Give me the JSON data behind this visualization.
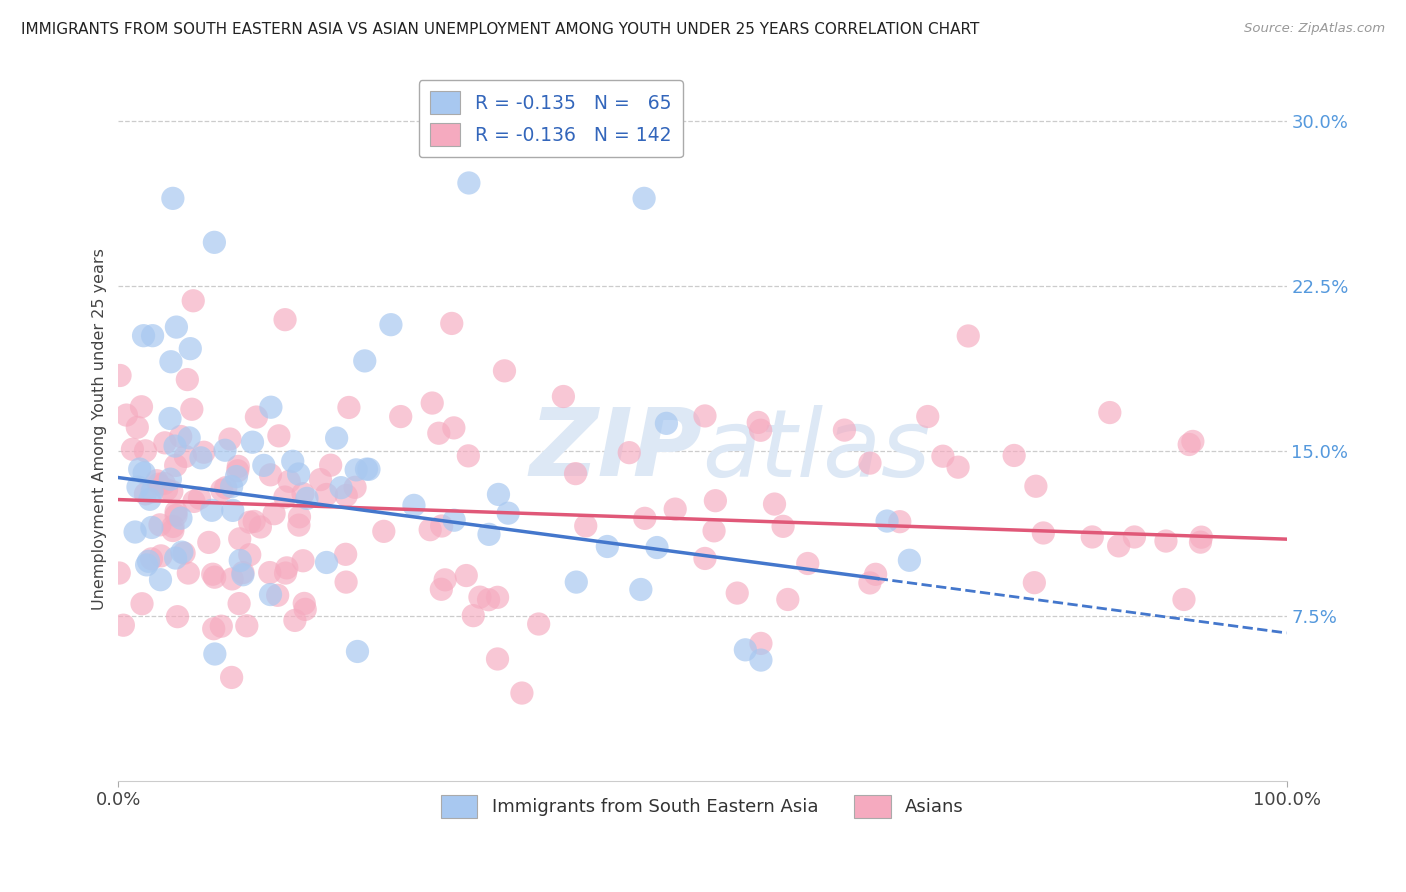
{
  "title": "IMMIGRANTS FROM SOUTH EASTERN ASIA VS ASIAN UNEMPLOYMENT AMONG YOUTH UNDER 25 YEARS CORRELATION CHART",
  "source": "Source: ZipAtlas.com",
  "ylabel": "Unemployment Among Youth under 25 years",
  "series1_label": "Immigrants from South Eastern Asia",
  "series1_R": -0.135,
  "series1_N": 65,
  "series1_color": "#a8c8f0",
  "series1_edge_color": "#7aabde",
  "series1_line_color": "#4477cc",
  "series2_label": "Asians",
  "series2_R": -0.136,
  "series2_N": 142,
  "series2_color": "#f5aabf",
  "series2_edge_color": "#e08898",
  "series2_line_color": "#e05878",
  "background_color": "#ffffff",
  "grid_color": "#cccccc",
  "title_color": "#222222",
  "source_color": "#999999",
  "yticklabel_color": "#5599dd",
  "xticklabel_color": "#444444",
  "xlim": [
    0.0,
    1.0
  ],
  "ylim": [
    0.0,
    0.32
  ],
  "yticks": [
    0.0,
    0.075,
    0.15,
    0.225,
    0.3
  ],
  "ytick_labels": [
    "",
    "7.5%",
    "15.0%",
    "22.5%",
    "30.0%"
  ],
  "watermark_text": "ZIPAtlas",
  "watermark_color": "#dde8f5"
}
